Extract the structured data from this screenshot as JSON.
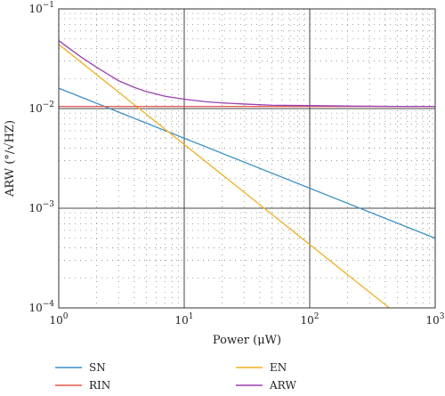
{
  "chart_data": {
    "type": "line",
    "xlabel": "Power (μW)",
    "ylabel": "ARW (°/√HZ)",
    "x_scale": "log",
    "y_scale": "log",
    "xlim": [
      1,
      1000
    ],
    "ylim": [
      0.0001,
      0.1
    ],
    "x_ticks": [
      {
        "base": "10",
        "exp": "0"
      },
      {
        "base": "10",
        "exp": "1"
      },
      {
        "base": "10",
        "exp": "2"
      },
      {
        "base": "10",
        "exp": "3"
      }
    ],
    "y_ticks": [
      {
        "base": "10",
        "exp": "−4"
      },
      {
        "base": "10",
        "exp": "−3"
      },
      {
        "base": "10",
        "exp": "−2"
      },
      {
        "base": "10",
        "exp": "−1"
      }
    ],
    "grid": "major solid, minor dotted",
    "legend_placement": "below plot, two columns",
    "series": [
      {
        "name": "SN",
        "color": "#3a8fc8",
        "x": [
          1,
          1000
        ],
        "y": [
          0.016,
          0.0005
        ]
      },
      {
        "name": "EN",
        "color": "#f2b21e",
        "x": [
          1,
          430
        ],
        "y": [
          0.044,
          0.0001
        ]
      },
      {
        "name": "RIN",
        "color": "#e8564a",
        "x": [
          1,
          1000
        ],
        "y": [
          0.0105,
          0.0105
        ]
      },
      {
        "name": "ARW",
        "color": "#9b3fb2",
        "x": [
          1,
          1.5,
          2,
          3,
          4,
          5,
          7,
          10,
          15,
          20,
          30,
          50,
          100,
          200,
          500,
          1000
        ],
        "y": [
          0.048,
          0.033,
          0.026,
          0.019,
          0.0163,
          0.0148,
          0.0133,
          0.0124,
          0.0117,
          0.0114,
          0.0111,
          0.0108,
          0.0107,
          0.0106,
          0.0105,
          0.0105
        ]
      }
    ]
  },
  "legend": {
    "sn": "SN",
    "en": "EN",
    "rin": "RIN",
    "arw": "ARW"
  }
}
